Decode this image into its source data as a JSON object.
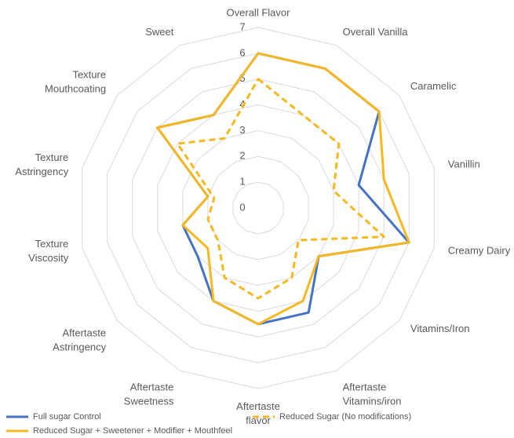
{
  "chart_data": {
    "type": "radar",
    "categories": [
      "Overall Flavor",
      "Overall Vanilla",
      "Caramelic",
      "Vanillin",
      "Creamy Dairy",
      "Vitamins/Iron",
      "Aftertaste Vitamins/iron",
      "Aftertaste flavor",
      "Aftertaste Sweetness",
      "Aftertaste Astringency",
      "Texture Viscosity",
      "Texture Astringency",
      "Texture Mouthcoating",
      "Sweet"
    ],
    "ylim": [
      0,
      7
    ],
    "yticks": [
      0,
      1,
      2,
      3,
      4,
      5,
      6,
      7
    ],
    "grid": true,
    "legend": "bottom",
    "series": [
      {
        "name": "Full sugar Control",
        "color": "#4472c4",
        "dash": false,
        "values": [
          6,
          6,
          6,
          4,
          6,
          3,
          4.5,
          4.5,
          4,
          3,
          3,
          2,
          5,
          4
        ]
      },
      {
        "name": "Reduced Sugar (No modifications)",
        "color": "#f5b820",
        "dash": true,
        "values": [
          5,
          4,
          4,
          3,
          5,
          2,
          3,
          3.5,
          3,
          2,
          2,
          1.75,
          4,
          3
        ]
      },
      {
        "name": "Reduced Sugar + Sweetener + Modifier + Mouthfeel",
        "color": "#f5b820",
        "dash": false,
        "values": [
          6,
          6,
          6,
          5,
          6,
          3,
          4,
          4.5,
          4,
          2.5,
          3,
          2,
          5,
          4
        ]
      }
    ]
  }
}
